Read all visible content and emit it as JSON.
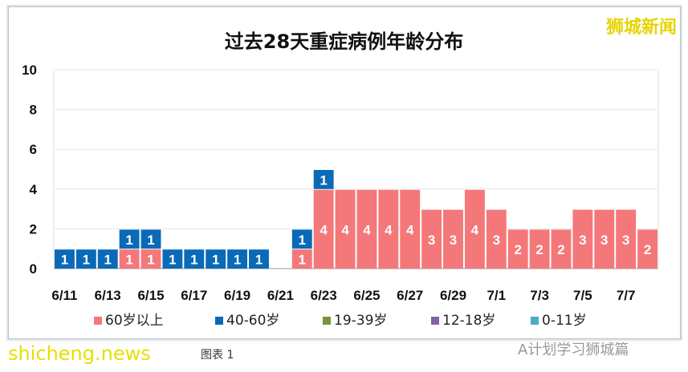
{
  "chart_data": {
    "type": "bar",
    "stacked": true,
    "title": "过去28天重症病例年龄分布",
    "categories": [
      "6/11",
      "6/12",
      "6/13",
      "6/14",
      "6/15",
      "6/16",
      "6/17",
      "6/18",
      "6/19",
      "6/20",
      "6/21",
      "6/22",
      "6/23",
      "6/24",
      "6/25",
      "6/26",
      "6/27",
      "6/28",
      "6/29",
      "6/30",
      "7/1",
      "7/2",
      "7/3",
      "7/4",
      "7/5",
      "7/6",
      "7/7",
      "7/8"
    ],
    "tick_labels": [
      "6/11",
      "6/13",
      "6/15",
      "6/17",
      "6/19",
      "6/21",
      "6/23",
      "6/25",
      "6/27",
      "6/29",
      "7/1",
      "7/3",
      "7/5",
      "7/7"
    ],
    "yticks": [
      "0",
      "2",
      "4",
      "6",
      "8",
      "10"
    ],
    "ylim": [
      0,
      10
    ],
    "grid": true,
    "legend_position": "bottom",
    "series": [
      {
        "name": "60岁以上",
        "color": "#f4777a",
        "values": [
          0,
          0,
          0,
          1,
          1,
          0,
          0,
          0,
          0,
          0,
          0,
          1,
          4,
          4,
          4,
          4,
          4,
          3,
          3,
          4,
          3,
          2,
          2,
          2,
          3,
          3,
          3,
          2
        ]
      },
      {
        "name": "40-60岁",
        "color": "#0a6ab8",
        "values": [
          1,
          1,
          1,
          1,
          1,
          1,
          1,
          1,
          1,
          1,
          0,
          1,
          1,
          0,
          0,
          0,
          0,
          0,
          0,
          0,
          0,
          0,
          0,
          0,
          0,
          0,
          0,
          0
        ]
      },
      {
        "name": "19-39岁",
        "color": "#77933c",
        "values": [
          0,
          0,
          0,
          0,
          0,
          0,
          0,
          0,
          0,
          0,
          0,
          0,
          0,
          0,
          0,
          0,
          0,
          0,
          0,
          0,
          0,
          0,
          0,
          0,
          0,
          0,
          0,
          0
        ]
      },
      {
        "name": "12-18岁",
        "color": "#8064a2",
        "values": [
          0,
          0,
          0,
          0,
          0,
          0,
          0,
          0,
          0,
          0,
          0,
          0,
          0,
          0,
          0,
          0,
          0,
          0,
          0,
          0,
          0,
          0,
          0,
          0,
          0,
          0,
          0,
          0
        ]
      },
      {
        "name": "0-11岁",
        "color": "#4bacc6",
        "values": [
          0,
          0,
          0,
          0,
          0,
          0,
          0,
          0,
          0,
          0,
          0,
          0,
          0,
          0,
          0,
          0,
          0,
          0,
          0,
          0,
          0,
          0,
          0,
          0,
          0,
          0,
          0,
          0
        ]
      }
    ]
  },
  "watermarks": {
    "top_right": "狮城新闻",
    "bottom_left": "shicheng.news",
    "bottom_right": "A计划学习狮城篇"
  },
  "caption": "图表 1"
}
